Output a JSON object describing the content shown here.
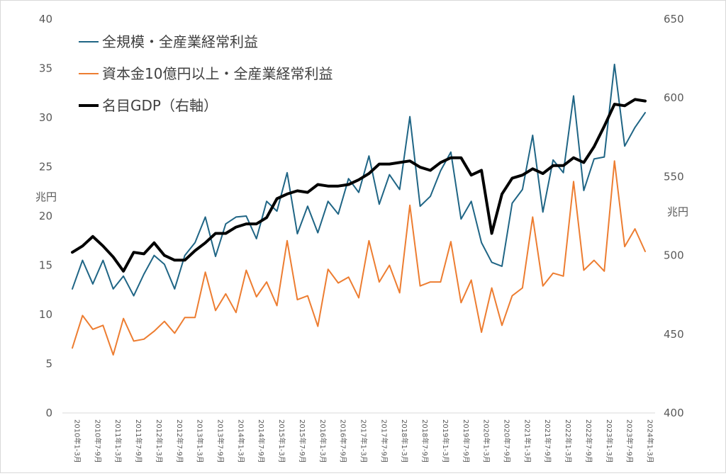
{
  "chart_data": {
    "type": "line",
    "title": "",
    "unit_left": "兆円",
    "unit_right": "兆円",
    "y_left": {
      "min": 0,
      "max": 40,
      "ticks": [
        0,
        5,
        10,
        15,
        20,
        25,
        30,
        35,
        40
      ]
    },
    "y_right": {
      "min": 400,
      "max": 650,
      "ticks": [
        400,
        450,
        500,
        550,
        600,
        650
      ]
    },
    "x_labels": [
      "2010年1-3月",
      "2010年7-9月",
      "2011年1-3月",
      "2011年7-9月",
      "2012年1-3月",
      "2012年7-9月",
      "2013年1-3月",
      "2013年7-9月",
      "2014年1-3月",
      "2014年7-9月",
      "2015年1-3月",
      "2015年7-9月",
      "2016年1-3月",
      "2016年7-9月",
      "2017年1-3月",
      "2017年7-9月",
      "2018年1-3月",
      "2018年7-9月",
      "2019年1-3月",
      "2019年7-9月",
      "2020年1-3月",
      "2020年7-9月",
      "2021年1-3月",
      "2021年7-9月",
      "2022年1-3月",
      "2022年7-9月",
      "2023年1-3月",
      "2023年7-9月",
      "2024年1-3月"
    ],
    "series": [
      {
        "name": "全規模・全産業経常利益",
        "color": "#1f6585",
        "axis": "left",
        "width": 2,
        "values": [
          12.6,
          15.5,
          13.1,
          15.5,
          12.6,
          13.9,
          11.9,
          14.1,
          16.0,
          15.1,
          12.6,
          16.0,
          17.3,
          19.9,
          15.9,
          19.2,
          19.9,
          20.0,
          17.7,
          21.5,
          20.5,
          24.4,
          18.2,
          21.0,
          18.3,
          21.5,
          20.2,
          23.8,
          22.4,
          26.1,
          21.2,
          24.2,
          22.7,
          30.1,
          21.0,
          22.0,
          24.6,
          26.5,
          19.7,
          21.5,
          17.3,
          15.3,
          14.9,
          21.3,
          22.7,
          28.2,
          20.4,
          25.7,
          24.4,
          32.2,
          22.6,
          25.8,
          26.0,
          35.4,
          27.1,
          29.0,
          30.5
        ]
      },
      {
        "name": "資本金10億円以上・全産業経常利益",
        "color": "#ed7d31",
        "axis": "left",
        "width": 2,
        "values": [
          6.6,
          9.9,
          8.5,
          8.9,
          5.9,
          9.6,
          7.3,
          7.5,
          8.3,
          9.3,
          8.1,
          9.7,
          9.7,
          14.3,
          10.4,
          12.1,
          10.2,
          14.5,
          11.8,
          13.3,
          10.9,
          17.5,
          11.5,
          11.9,
          8.8,
          14.6,
          13.2,
          13.8,
          11.7,
          17.5,
          13.3,
          15.0,
          12.2,
          21.1,
          12.9,
          13.3,
          13.3,
          17.4,
          11.2,
          13.5,
          8.2,
          12.7,
          8.9,
          11.9,
          12.7,
          19.9,
          12.9,
          14.2,
          13.9,
          23.5,
          14.5,
          15.5,
          14.4,
          25.6,
          16.9,
          18.7,
          16.4
        ]
      },
      {
        "name": "名目GDP（右軸）",
        "color": "#000000",
        "axis": "right",
        "width": 4,
        "values": [
          502,
          506,
          512,
          506,
          499,
          490,
          502,
          501,
          508,
          500,
          497,
          497,
          503,
          508,
          514,
          514,
          518,
          520,
          520,
          524,
          536,
          539,
          541,
          540,
          545,
          544,
          544,
          545,
          548,
          552,
          558,
          558,
          559,
          560,
          556,
          554,
          559,
          562,
          562,
          551,
          554,
          514,
          539,
          549,
          551,
          555,
          552,
          557,
          557,
          562,
          559,
          569,
          582,
          596,
          595,
          599,
          598
        ]
      }
    ]
  }
}
